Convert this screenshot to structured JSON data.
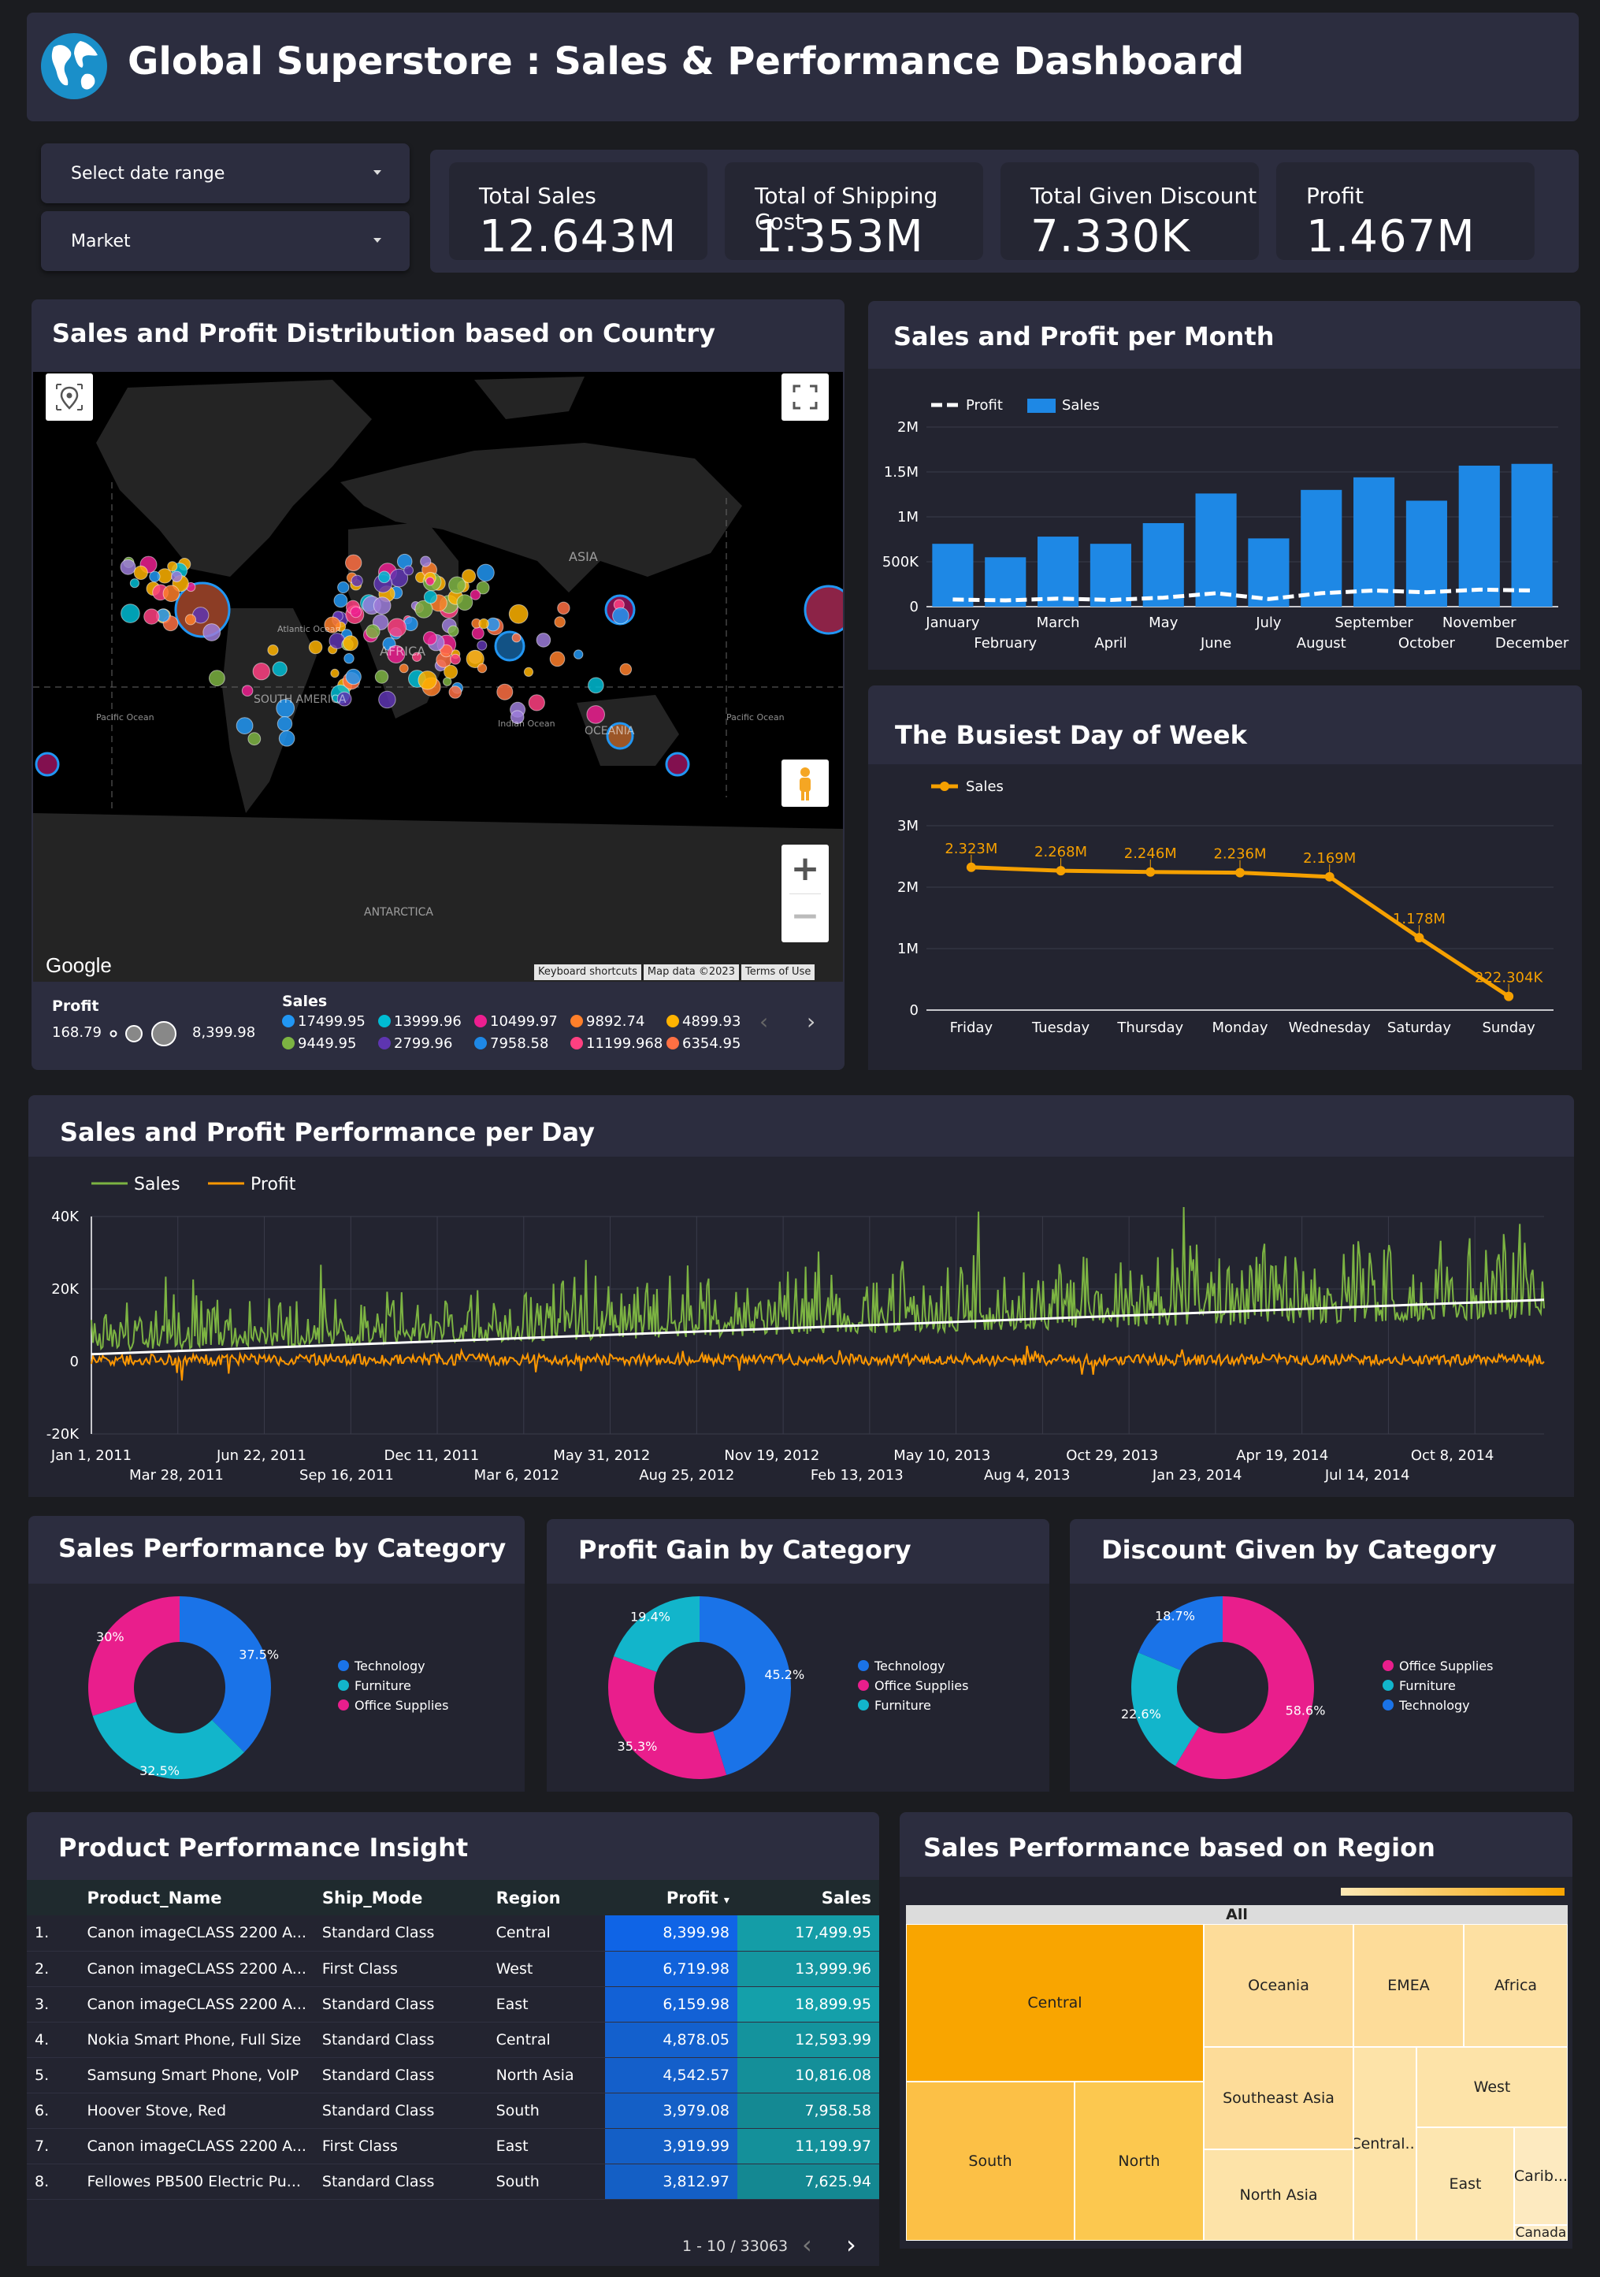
{
  "header": {
    "title": "Global Superstore : Sales & Performance Dashboard"
  },
  "filters": {
    "date_range": "Select date range",
    "market": "Market"
  },
  "kpis": [
    {
      "label": "Total Sales",
      "value": "12.643M"
    },
    {
      "label": "Total of Shipping Cost",
      "value": "1.353M"
    },
    {
      "label": "Total Given Discount",
      "value": "7.330K"
    },
    {
      "label": "Profit",
      "value": "1.467M"
    }
  ],
  "map_panel": {
    "title": "Sales and Profit Distribution based on Country",
    "google": "Google",
    "attribution": [
      "Keyboard shortcuts",
      "Map data ©2023",
      "Terms of Use"
    ],
    "places": [
      "ASIA",
      "Atlantic Ocean",
      "AFRICA",
      "SOUTH AMERICA",
      "Pacific Ocean",
      "Indian Ocean",
      "OCEANIA",
      "Pacific Ocean",
      "ANTARCTICA"
    ],
    "legend": {
      "profit_label": "Profit",
      "profit_min": "168.79",
      "profit_max": "8,399.98",
      "sales_label": "Sales",
      "sales_items": [
        {
          "value": "17499.95",
          "color": "#2196f3"
        },
        {
          "value": "13999.96",
          "color": "#00bcd4"
        },
        {
          "value": "10499.97",
          "color": "#ec1e8f"
        },
        {
          "value": "9892.74",
          "color": "#ff7f2a"
        },
        {
          "value": "4899.93",
          "color": "#ffb300"
        },
        {
          "value": "9449.95",
          "color": "#7cb342"
        },
        {
          "value": "2799.96",
          "color": "#5e35b1"
        },
        {
          "value": "7958.58",
          "color": "#1e88e5"
        },
        {
          "value": "11199.968",
          "color": "#ff4081"
        },
        {
          "value": "6354.95",
          "color": "#ff7043"
        }
      ]
    }
  },
  "month_chart": {
    "title": "Sales and Profit per Month",
    "chart_data": {
      "type": "bar",
      "categories": [
        "January",
        "February",
        "March",
        "April",
        "May",
        "June",
        "July",
        "August",
        "September",
        "October",
        "November",
        "December"
      ],
      "series": [
        {
          "name": "Sales",
          "values": [
            700000,
            550000,
            780000,
            700000,
            930000,
            1260000,
            760000,
            1300000,
            1440000,
            1180000,
            1570000,
            1590000
          ]
        },
        {
          "name": "Profit",
          "values": [
            80000,
            70000,
            90000,
            75000,
            100000,
            150000,
            85000,
            150000,
            180000,
            160000,
            190000,
            180000
          ]
        }
      ],
      "yticks": [
        "2M",
        "1.5M",
        "1M",
        "500K",
        "0"
      ],
      "ylim": [
        0,
        2000000
      ],
      "legend": "top-left"
    }
  },
  "weekday_chart": {
    "title": "The Busiest Day of Week",
    "chart_data": {
      "type": "line",
      "categories": [
        "Friday",
        "Tuesday",
        "Thursday",
        "Monday",
        "Wednesday",
        "Saturday",
        "Sunday"
      ],
      "series": [
        {
          "name": "Sales",
          "values": [
            2323000,
            2268000,
            2246000,
            2236000,
            2169000,
            1178000,
            222304
          ],
          "labels": [
            "2.323M",
            "2.268M",
            "2.246M",
            "2.236M",
            "2.169M",
            "1.178M",
            "222.304K"
          ]
        }
      ],
      "yticks": [
        "3M",
        "2M",
        "1M",
        "0"
      ],
      "ylim": [
        0,
        3000000
      ]
    }
  },
  "daily_chart": {
    "title": "Sales and Profit Performance per Day",
    "chart_data": {
      "type": "line",
      "series": [
        {
          "name": "Sales",
          "color": "#7cb342"
        },
        {
          "name": "Profit",
          "color": "#ff9800"
        }
      ],
      "yticks": [
        "40K",
        "20K",
        "0",
        "-20K"
      ],
      "ylim": [
        -20000,
        40000
      ],
      "xticks_top": [
        "Jan 1, 2011",
        "Jun 22, 2011",
        "Dec 11, 2011",
        "May 31, 2012",
        "Nov 19, 2012",
        "May 10, 2013",
        "Oct 29, 2013",
        "Apr 19, 2014",
        "Oct 8, 2014"
      ],
      "xticks_bottom": [
        "Mar 28, 2011",
        "Sep 16, 2011",
        "Mar 6, 2012",
        "Aug 25, 2012",
        "Feb 13, 2013",
        "Aug 4, 2013",
        "Jan 23, 2014",
        "Jul 14, 2014"
      ],
      "trend": [
        2000,
        17000
      ]
    }
  },
  "donut_sales": {
    "title": "Sales Performance by Category",
    "chart_data": {
      "type": "pie",
      "labels": [
        "Technology",
        "Furniture",
        "Office Supplies"
      ],
      "values": [
        37.5,
        32.5,
        30
      ],
      "colors": [
        "#1a73e8",
        "#12b5cb",
        "#e91e8c"
      ],
      "pct": [
        "37.5%",
        "32.5%",
        "30%"
      ]
    }
  },
  "donut_profit": {
    "title": "Profit Gain by Category",
    "chart_data": {
      "type": "pie",
      "labels": [
        "Technology",
        "Office Supplies",
        "Furniture"
      ],
      "values": [
        45.2,
        35.3,
        19.4
      ],
      "colors": [
        "#1a73e8",
        "#e91e8c",
        "#12b5cb"
      ],
      "pct": [
        "45.2%",
        "35.3%",
        "19.4%"
      ]
    }
  },
  "donut_discount": {
    "title": "Discount Given by Category",
    "chart_data": {
      "type": "pie",
      "labels": [
        "Office Supplies",
        "Furniture",
        "Technology"
      ],
      "values": [
        58.6,
        22.6,
        18.7
      ],
      "colors": [
        "#e91e8c",
        "#12b5cb",
        "#1a73e8"
      ],
      "pct": [
        "58.6%",
        "22.6%",
        "18.7%"
      ]
    }
  },
  "product_table": {
    "title": "Product Performance Insight",
    "columns": [
      "Product_Name",
      "Ship_Mode",
      "Region",
      "Profit",
      "Sales"
    ],
    "sort_indicator": "▾",
    "rows": [
      [
        "1.",
        "Canon imageCLASS 2200 A...",
        "Standard Class",
        "Central",
        "8,399.98",
        "17,499.95"
      ],
      [
        "2.",
        "Canon imageCLASS 2200 A...",
        "First Class",
        "West",
        "6,719.98",
        "13,999.96"
      ],
      [
        "3.",
        "Canon imageCLASS 2200 A...",
        "Standard Class",
        "East",
        "6,159.98",
        "18,899.95"
      ],
      [
        "4.",
        "Nokia Smart Phone, Full Size",
        "Standard Class",
        "Central",
        "4,878.05",
        "12,593.99"
      ],
      [
        "5.",
        "Samsung Smart Phone, VoIP",
        "Standard Class",
        "North Asia",
        "4,542.57",
        "10,816.08"
      ],
      [
        "6.",
        "Hoover Stove, Red",
        "Standard Class",
        "South",
        "3,979.08",
        "7,958.58"
      ],
      [
        "7.",
        "Canon imageCLASS 2200 A...",
        "First Class",
        "East",
        "3,919.99",
        "11,199.97"
      ],
      [
        "8.",
        "Fellowes PB500 Electric Pu...",
        "Standard Class",
        "South",
        "3,812.97",
        "7,625.94"
      ]
    ],
    "pagination": "1 - 10 / 33063"
  },
  "region_treemap": {
    "title": "Sales Performance based on Region",
    "root": "All",
    "chart_data": {
      "type": "treemap",
      "labels": [
        "Central",
        "South",
        "North",
        "Oceania",
        "Southeast Asia",
        "North Asia",
        "EMEA",
        "Africa",
        "Central...",
        "West",
        "East",
        "Carib...",
        "Canada"
      ]
    }
  }
}
